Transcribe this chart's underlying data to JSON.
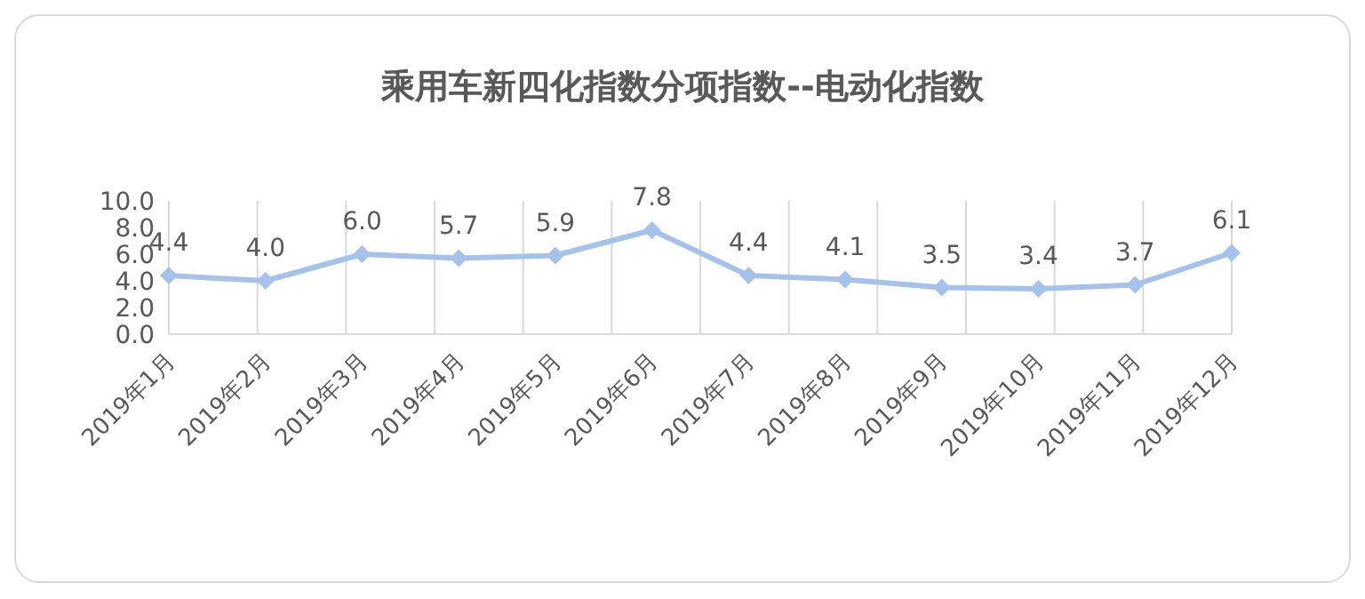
{
  "chart_data": {
    "type": "line",
    "title": "乘用车新四化指数分项指数--电动化指数",
    "categories": [
      "2019年1月",
      "2019年2月",
      "2019年3月",
      "2019年4月",
      "2019年5月",
      "2019年6月",
      "2019年7月",
      "2019年8月",
      "2019年9月",
      "2019年10月",
      "2019年11月",
      "2019年12月"
    ],
    "series": [
      {
        "color": "#a4c2ea",
        "values": [
          4.4,
          4.0,
          6.0,
          5.7,
          5.9,
          7.8,
          4.4,
          4.1,
          3.5,
          3.4,
          3.7,
          6.1
        ],
        "value_labels": [
          "4.4",
          "4.0",
          "6.0",
          "5.7",
          "5.9",
          "7.8",
          "4.4",
          "4.1",
          "3.5",
          "3.4",
          "3.7",
          "6.1"
        ]
      }
    ],
    "ylim": [
      0,
      10
    ],
    "yticks": [
      {
        "value": 0,
        "label": "0.0"
      },
      {
        "value": 2,
        "label": "2.0"
      },
      {
        "value": 4,
        "label": "4.0"
      },
      {
        "value": 6,
        "label": "6.0"
      },
      {
        "value": 8,
        "label": "8.0"
      },
      {
        "value": 10,
        "label": "10.0"
      }
    ],
    "grid": "x",
    "marker": "diamond",
    "line_style": "solid"
  }
}
